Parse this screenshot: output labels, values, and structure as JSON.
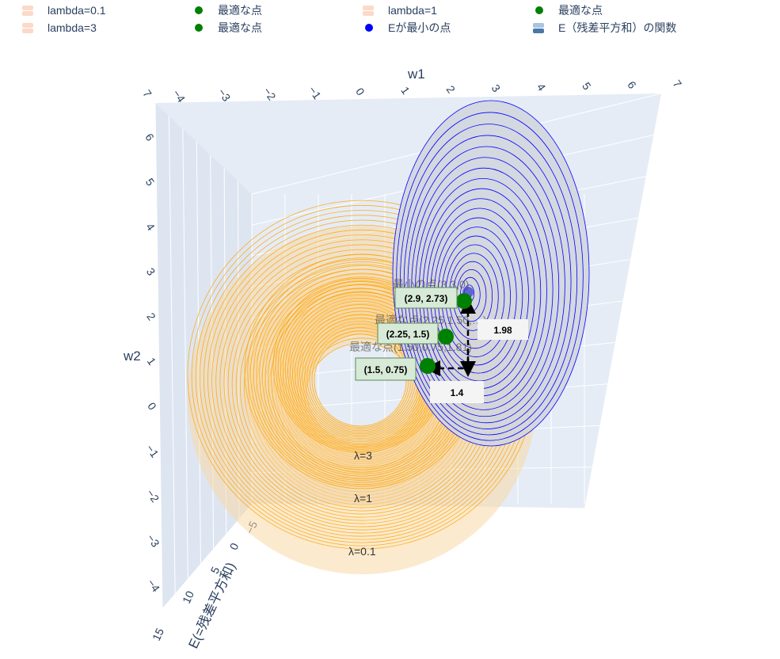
{
  "legend": [
    {
      "label": "lambda=0.1",
      "kind": "surf",
      "color": "#fcd9c8"
    },
    {
      "label": "最適な点",
      "kind": "dot",
      "color": "#008000"
    },
    {
      "label": "lambda=1",
      "kind": "surf",
      "color": "#fcd9c8"
    },
    {
      "label": "最適な点",
      "kind": "dot",
      "color": "#008000"
    },
    {
      "label": "lambda=3",
      "kind": "surf",
      "color": "#fcd9c8"
    },
    {
      "label": "最適な点",
      "kind": "dot",
      "color": "#008000"
    },
    {
      "label": "Eが最小の点",
      "kind": "dot",
      "color": "#0000ff"
    },
    {
      "label": "E（残差平方和）の関数",
      "kind": "surfblue",
      "color": "#4a78aa"
    }
  ],
  "chart_data": {
    "type": "surface3d",
    "axes": {
      "x": {
        "title": "w1",
        "ticks": [
          "−4",
          "−3",
          "−2",
          "−1",
          "0",
          "1",
          "2",
          "3",
          "4",
          "5",
          "6",
          "7"
        ],
        "range": [
          -4,
          7
        ]
      },
      "y": {
        "title": "w2",
        "ticks": [
          "7",
          "6",
          "5",
          "4",
          "3",
          "2",
          "1",
          "0",
          "−1",
          "−2",
          "−3",
          "−4"
        ],
        "range": [
          -4,
          7
        ]
      },
      "z": {
        "title": "E(=残差平方和)",
        "ticks": [
          "−5",
          "0",
          "5",
          "10",
          "15"
        ],
        "range": [
          -5,
          15
        ]
      }
    },
    "regularization_labels": [
      "λ=3",
      "λ=1",
      "λ=0.1"
    ],
    "error_surface": {
      "name": "E（残差平方和）の関数",
      "center": [
        3,
        3
      ],
      "edge_color": "#0000ff"
    },
    "penalty_surfaces": [
      {
        "name": "lambda=0.1",
        "color": "#ffa500"
      },
      {
        "name": "lambda=1",
        "color": "#ffa500"
      },
      {
        "name": "lambda=3",
        "color": "#ffa500"
      }
    ],
    "points": [
      {
        "name": "最適な点",
        "lambda": "0.1",
        "w1": 2.9,
        "w2": 2.73,
        "label": "(2.9, 2.73)"
      },
      {
        "name": "最適な点",
        "lambda": "1",
        "w1": 2.25,
        "w2": 1.5,
        "label": "(2.25, 1.5)"
      },
      {
        "name": "最適な点",
        "lambda": "3",
        "w1": 1.5,
        "w2": 0.75,
        "label": "(1.5, 0.75)"
      },
      {
        "name": "Eが最小の点",
        "w1": 3,
        "w2": 3
      }
    ],
    "arrow_labels": [
      "1.98",
      "1.4"
    ],
    "hover_texts": [
      "最適な点(1.50,0.75,1.81)",
      "最適な点(2.25,1.50,…)",
      "最小の点(3,3,0)"
    ]
  }
}
